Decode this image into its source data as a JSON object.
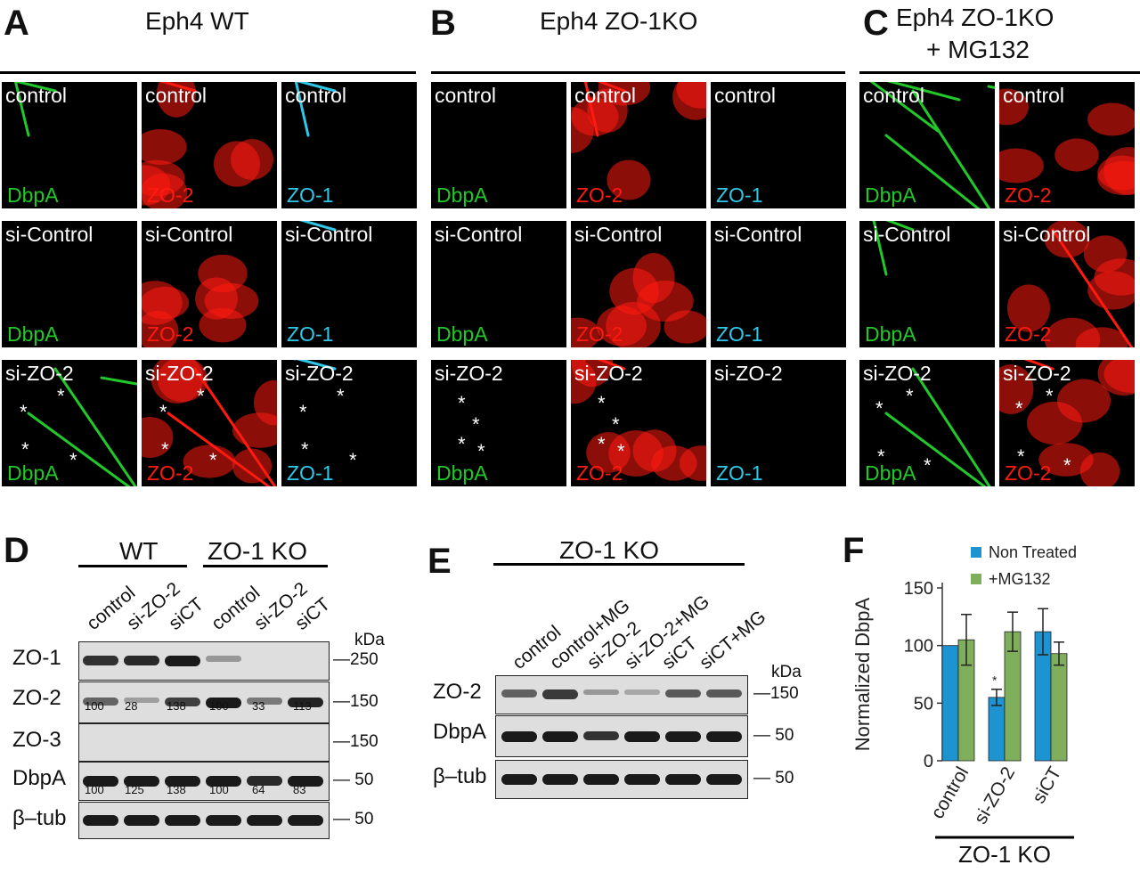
{
  "panelA": {
    "letter": "A",
    "title": "Eph4  WT"
  },
  "panelB": {
    "letter": "B",
    "title": "Eph4  ZO-1KO"
  },
  "panelC": {
    "letter": "C",
    "title_line1": "Eph4  ZO-1KO",
    "title_line2": "+ MG132"
  },
  "colors": {
    "green": "#22c82a",
    "red": "#ff1a10",
    "cyan": "#30c8e8",
    "nt_bar": "#1d93d1",
    "mg_bar": "#7fae5c"
  },
  "micro": {
    "A": [
      [
        "control",
        "DbpA",
        "control",
        "ZO-2",
        "control",
        "ZO-1"
      ],
      [
        "si-Control",
        "DbpA",
        "si-Control",
        "ZO-2",
        "si-Control",
        "ZO-1"
      ],
      [
        "si-ZO-2",
        "DbpA",
        "si-ZO-2",
        "ZO-2",
        "si-ZO-2",
        "ZO-1"
      ]
    ],
    "B": [
      [
        "control",
        "DbpA",
        "control",
        "ZO-2",
        "control",
        "ZO-1"
      ],
      [
        "si-Control",
        "DbpA",
        "si-Control",
        "ZO-2",
        "si-Control",
        "ZO-1"
      ],
      [
        "si-ZO-2",
        "DbpA",
        "si-ZO-2",
        "ZO-2",
        "si-ZO-2",
        "ZO-1"
      ]
    ],
    "C": [
      [
        "control",
        "DbpA",
        "control",
        "ZO-2"
      ],
      [
        "si-Control",
        "DbpA",
        "si-Control",
        "ZO-2"
      ],
      [
        "si-ZO-2",
        "DbpA",
        "si-ZO-2",
        "ZO-2"
      ]
    ],
    "star": "*"
  },
  "panelD": {
    "letter": "D",
    "group1": "WT",
    "group2": "ZO-1 KO",
    "lanes": [
      "control",
      "si-ZO-2",
      "siCT",
      "control",
      "si-ZO-2",
      "siCT"
    ],
    "rows": [
      "ZO-1",
      "ZO-2",
      "ZO-3",
      "DbpA",
      "β–tub"
    ],
    "kda_title": "kDa",
    "markers": [
      "—250",
      "—150",
      "—150",
      "— 50",
      "— 50"
    ],
    "zo2_quant": [
      "100",
      "28",
      "138",
      "100",
      "33",
      "113"
    ],
    "dbpa_quant": [
      "100",
      "125",
      "138",
      "100",
      "64",
      "83"
    ]
  },
  "panelE": {
    "letter": "E",
    "group": "ZO-1 KO",
    "lanes": [
      "control",
      "control+MG",
      "si-ZO-2",
      "si-ZO-2+MG",
      "siCT",
      "siCT+MG"
    ],
    "rows": [
      "ZO-2",
      "DbpA",
      "β–tub"
    ],
    "kda_title": "kDa",
    "markers": [
      "—150",
      "— 50",
      "— 50"
    ]
  },
  "panelF": {
    "letter": "F",
    "group": "ZO-1 KO",
    "asterisk": "*"
  },
  "chart_data": {
    "type": "bar",
    "categories": [
      "control",
      "si-ZO-2",
      "siCT"
    ],
    "series": [
      {
        "name": "Non Treated",
        "values": [
          100,
          55,
          112
        ],
        "errors": [
          0,
          7,
          20
        ]
      },
      {
        "name": "+MG132",
        "values": [
          105,
          112,
          93
        ],
        "errors": [
          22,
          17,
          10
        ]
      }
    ],
    "ylabel": "Normalized DbpA",
    "yticks": [
      0,
      50,
      100,
      150
    ],
    "ylim": [
      0,
      150
    ],
    "legend": "top-right",
    "grid": false
  }
}
